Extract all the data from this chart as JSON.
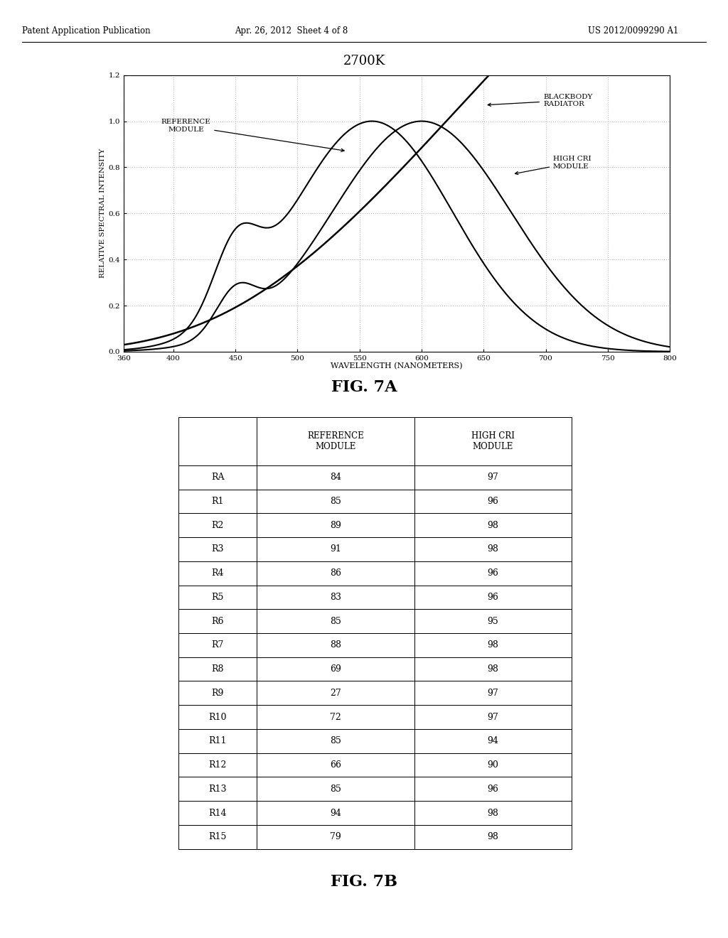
{
  "title_main": "2700K",
  "fig7a_label": "FIG. 7A",
  "fig7b_label": "FIG. 7B",
  "patent_header": "Patent Application Publication",
  "patent_date": "Apr. 26, 2012  Sheet 4 of 8",
  "patent_number": "US 2012/0099290 A1",
  "xlabel": "WAVELENGTH (NANOMETERS)",
  "ylabel": "RELATIVE SPECTRAL INTENSITY",
  "xlim": [
    360,
    800
  ],
  "ylim": [
    0.0,
    1.2
  ],
  "xticks": [
    360,
    400,
    450,
    500,
    550,
    600,
    650,
    700,
    750,
    800
  ],
  "yticks": [
    0.0,
    0.2,
    0.4,
    0.6,
    0.8,
    1.0,
    1.2
  ],
  "grid_color": "#bbbbbb",
  "bg_color": "#ffffff",
  "line_color": "#000000",
  "annotation_reference": "REFERENCE\nMODULE",
  "annotation_blackbody": "BLACKBODY\nRADIATOR",
  "annotation_highcri": "HIGH CRI\nMODULE",
  "table_rows": [
    "RA",
    "R1",
    "R2",
    "R3",
    "R4",
    "R5",
    "R6",
    "R7",
    "R8",
    "R9",
    "R10",
    "R11",
    "R12",
    "R13",
    "R14",
    "R15"
  ],
  "table_ref": [
    84,
    85,
    89,
    91,
    86,
    83,
    85,
    88,
    69,
    27,
    72,
    85,
    66,
    85,
    94,
    79
  ],
  "table_highcri": [
    97,
    96,
    98,
    98,
    96,
    96,
    95,
    98,
    98,
    97,
    97,
    94,
    90,
    96,
    98,
    98
  ],
  "col_header1": "REFERENCE\nMODULE",
  "col_header2": "HIGH CRI\nMODULE"
}
